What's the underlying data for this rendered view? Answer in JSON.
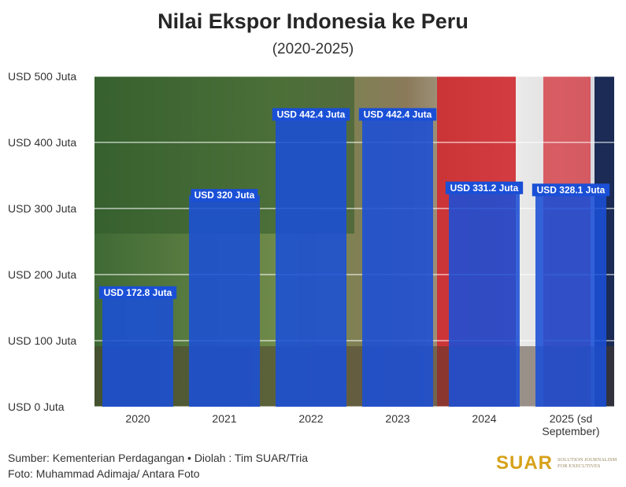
{
  "title": "Nilai Ekspor Indonesia ke Peru",
  "subtitle": "(2020-2025)",
  "source_line": "Sumber: Kementerian Perdagangan • Diolah : Tim SUAR/Tria",
  "photo_credit": "Foto: Muhammad Adimaja/ Antara Foto",
  "logo": {
    "word": "SUAR",
    "tagline": "Solution Journalism for Executives"
  },
  "colors": {
    "bar": "#1a4fd6",
    "logo": "#d7a21b"
  },
  "chart_data": {
    "type": "bar",
    "title": "Nilai Ekspor Indonesia ke Peru",
    "subtitle": "(2020-2025)",
    "categories": [
      "2020",
      "2021",
      "2022",
      "2023",
      "2024",
      "2025 (sd September)"
    ],
    "values": [
      172.8,
      320,
      442.4,
      442.4,
      331.2,
      328.1
    ],
    "data_labels": [
      "USD 172.8 Juta",
      "USD 320 Juta",
      "USD 442.4 Juta",
      "USD 442.4 Juta",
      "USD 331.2 Juta",
      "USD 328.1 Juta"
    ],
    "y_ticks": [
      0,
      100,
      200,
      300,
      400,
      500
    ],
    "y_tick_labels": [
      "USD 0 Juta",
      "USD 100 Juta",
      "USD 200 Juta",
      "USD 300 Juta",
      "USD 400 Juta",
      "USD 500 Juta"
    ],
    "ylim": [
      0,
      500
    ],
    "grid": true,
    "background": "photo"
  }
}
